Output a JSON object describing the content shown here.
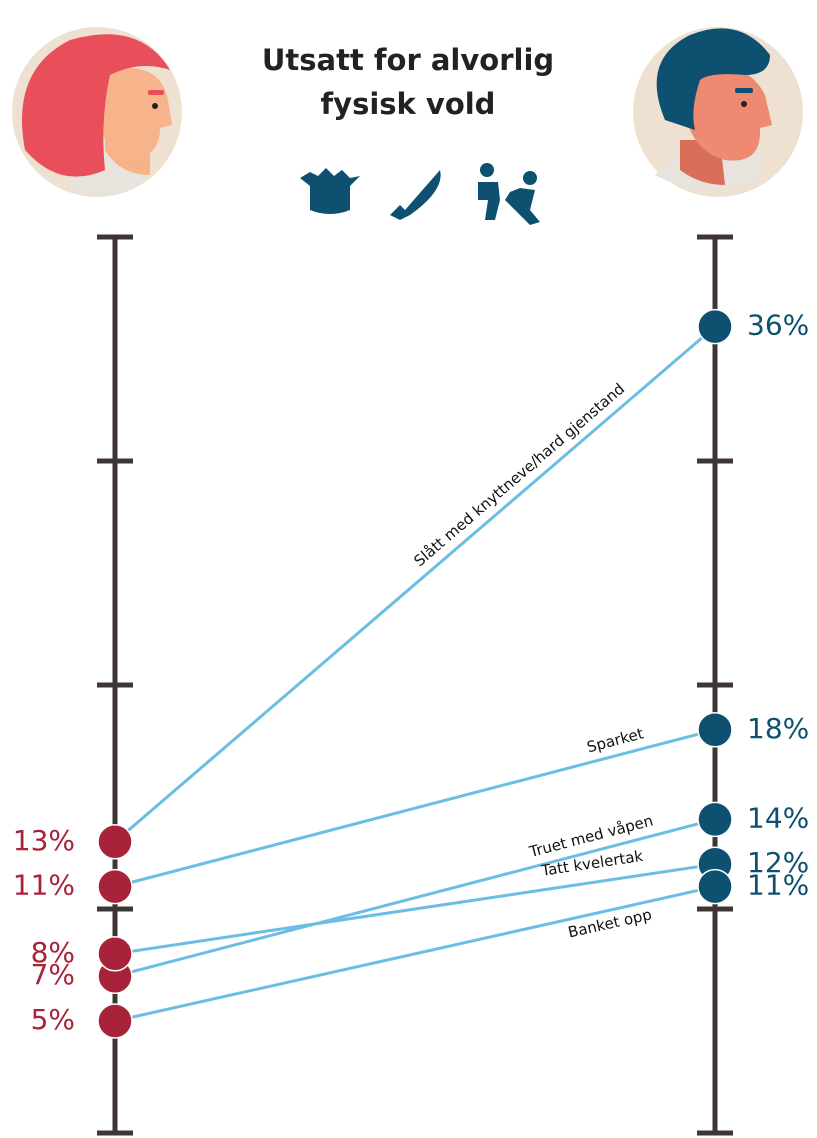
{
  "chart_data": {
    "type": "slope",
    "title": "Utsatt for alvorlig fysisk vold",
    "categories": [
      "Slått med knyttneve/hard gjenstand",
      "Sparket",
      "Truet med våpen",
      "Tatt kvelertak",
      "Banket opp"
    ],
    "series": [
      {
        "color": "#a8233a",
        "values": [
          13,
          11,
          7,
          8,
          5
        ],
        "value_labels": [
          "13%",
          "11%",
          "7%",
          "8%",
          "5%"
        ]
      },
      {
        "color": "#0e5070",
        "values": [
          36,
          18,
          14,
          12,
          11
        ],
        "value_labels": [
          "36%",
          "18%",
          "14%",
          "12%",
          "11%"
        ]
      }
    ],
    "line_color": "#6bbde3",
    "ylim": [
      0,
      40
    ],
    "yticks": [
      0,
      10,
      20,
      30,
      40
    ]
  }
}
